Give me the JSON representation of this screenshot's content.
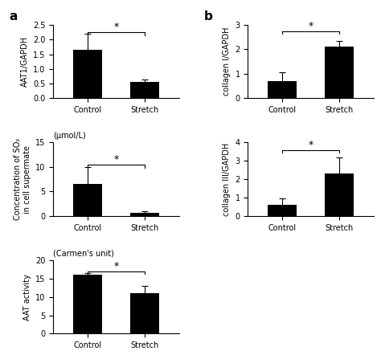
{
  "chart_data": [
    {
      "type": "bar",
      "title": "a",
      "ylabel": "AAT1/GAPDH",
      "categories": [
        "Control",
        "Stretch"
      ],
      "values": [
        1.65,
        0.55
      ],
      "errors": [
        0.55,
        0.08
      ],
      "color": "#000000",
      "ylim": [
        0,
        2.5
      ],
      "yticks": [
        {
          "value": 0.0,
          "label": "0.0"
        },
        {
          "value": 0.5,
          "label": "0.5"
        },
        {
          "value": 1.0,
          "label": "1.0"
        },
        {
          "value": 1.5,
          "label": "1.5"
        },
        {
          "value": 2.0,
          "label": "2.0"
        },
        {
          "value": 2.5,
          "label": "2.5"
        }
      ],
      "annotations": [
        {
          "text": "*",
          "y": 2.25
        }
      ]
    },
    {
      "type": "bar",
      "subtitle": "(μmol/L)",
      "ylabel": "Concentration of SO₂\nin cell supermate",
      "categories": [
        "Control",
        "Stretch"
      ],
      "values": [
        6.5,
        0.7
      ],
      "errors": [
        3.5,
        0.3
      ],
      "color": "#000000",
      "ylim": [
        0,
        15
      ],
      "yticks": [
        0,
        5,
        10,
        15
      ],
      "annotations": [
        {
          "text": "*",
          "y": 10.5
        }
      ]
    },
    {
      "type": "bar",
      "subtitle": "(Carmen's unit)",
      "ylabel": "AAT activity",
      "categories": [
        "Control",
        "Stretch"
      ],
      "values": [
        16.0,
        11.0
      ],
      "errors": [
        0.5,
        2.0
      ],
      "color": "#000000",
      "ylim": [
        0,
        20
      ],
      "yticks": [
        0,
        5,
        10,
        15,
        20
      ],
      "annotations": [
        {
          "text": "*",
          "y": 17.0
        }
      ]
    },
    {
      "type": "bar",
      "title": "b",
      "ylabel": "collagen I/GAPDH",
      "categories": [
        "Control",
        "Stretch"
      ],
      "values": [
        0.7,
        2.1
      ],
      "errors": [
        0.35,
        0.25
      ],
      "color": "#000000",
      "ylim": [
        0,
        3
      ],
      "yticks": [
        0,
        1,
        2,
        3
      ],
      "annotations": [
        {
          "text": "*",
          "y": 2.75
        }
      ]
    },
    {
      "type": "bar",
      "ylabel": "collagen III/GAPDH",
      "categories": [
        "Control",
        "Stretch"
      ],
      "values": [
        0.6,
        2.3
      ],
      "errors": [
        0.35,
        0.9
      ],
      "color": "#000000",
      "ylim": [
        0,
        4
      ],
      "yticks": [
        0,
        1,
        2,
        3,
        4
      ],
      "annotations": [
        {
          "text": "*",
          "y": 3.6
        }
      ]
    }
  ]
}
